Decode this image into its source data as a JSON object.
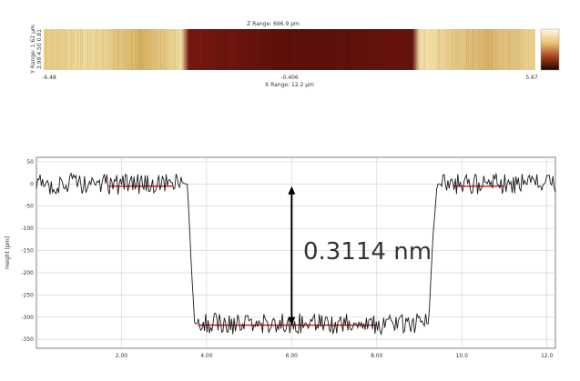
{
  "afm_image": {
    "z_range_label": "Z Range: 696.9 pm",
    "y_range_label": "Y Range: 1.62 µm",
    "y_ticks_label": "3.99 4.50 0.81",
    "x_range_label": "X Range: 12.2 µm",
    "x_tick_left": "-6.48",
    "x_tick_mid": "-0.406",
    "x_tick_right": "5.67",
    "colorbar_labels": [
      "",
      "",
      "",
      ""
    ],
    "colors": {
      "light": "#f0dc96",
      "mid": "#d4a44a",
      "dark": "#6e1410",
      "deep": "#3a0804"
    }
  },
  "chart_data": {
    "type": "line",
    "xlabel": "",
    "ylabel": "Height [pm]",
    "xlim": [
      0,
      12.2
    ],
    "ylim": [
      -370,
      60
    ],
    "xticks": [
      2,
      4,
      6,
      8,
      10,
      12
    ],
    "xtick_labels": [
      "2.00",
      "4.00",
      "6.00",
      "8.00",
      "10.0",
      "12.0"
    ],
    "yticks": [
      50,
      0,
      -50,
      -100,
      -150,
      -200,
      -250,
      -300,
      -350
    ],
    "ytick_labels": [
      "50",
      "0",
      "-50",
      "-100",
      "-150",
      "-200",
      "-250",
      "-300",
      "-350"
    ],
    "grid": true,
    "annotation": "0.3114 nm",
    "step_profile": [
      [
        0.0,
        0
      ],
      [
        3.55,
        0
      ],
      [
        3.65,
        -200
      ],
      [
        3.72,
        -315
      ],
      [
        9.22,
        -315
      ],
      [
        9.32,
        -120
      ],
      [
        9.42,
        0
      ],
      [
        12.2,
        0
      ]
    ],
    "reference_lines": [
      {
        "x": [
          1.7,
          3.2
        ],
        "y": -5
      },
      {
        "x": [
          3.8,
          8.0
        ],
        "y": -318
      },
      {
        "x": [
          9.8,
          11.0
        ],
        "y": -5
      }
    ],
    "arrow": {
      "x": 6.0,
      "y_top": -5,
      "y_bottom": -318
    },
    "colors": {
      "trace": "#1a1a1a",
      "reference": "#e02020",
      "arrow": "#000000",
      "grid": "#d0d0d0",
      "frame": "#808080"
    }
  }
}
